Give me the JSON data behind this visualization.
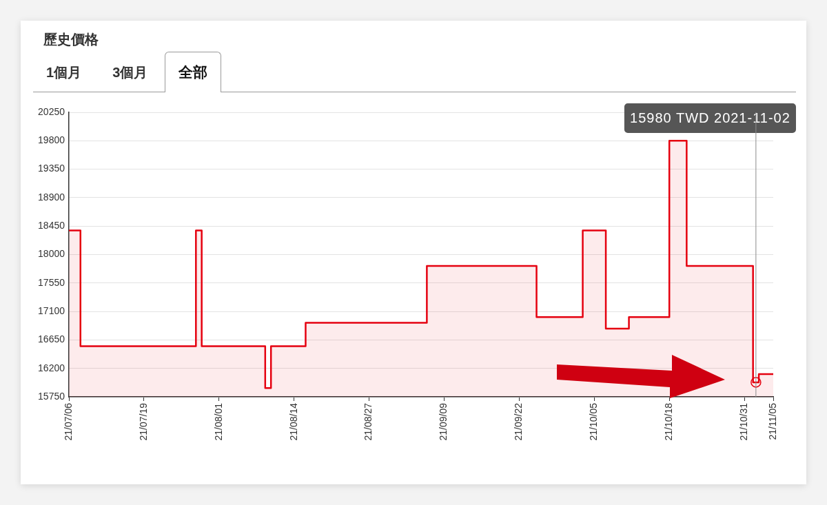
{
  "chart_data": {
    "type": "area",
    "title": "歷史價格",
    "annotations": [
      "1個月",
      "3個月",
      "全部",
      {
        "text": "15980 TWD 2021-11-02",
        "x": "2021-11-02"
      }
    ],
    "series": [
      {
        "color": "#e5000f",
        "x": [
          "2021-07-06",
          "2021-07-08",
          "2021-07-08",
          "2021-07-28",
          "2021-07-28",
          "2021-07-29",
          "2021-07-29",
          "2021-08-09",
          "2021-08-09",
          "2021-08-10",
          "2021-08-10",
          "2021-08-16",
          "2021-08-16",
          "2021-09-06",
          "2021-09-06",
          "2021-09-25",
          "2021-09-25",
          "2021-10-03",
          "2021-10-03",
          "2021-10-07",
          "2021-10-07",
          "2021-10-11",
          "2021-10-11",
          "2021-10-18",
          "2021-10-18",
          "2021-10-21",
          "2021-10-21",
          "2021-11-01T12:00",
          "2021-11-01T12:00",
          "2021-11-02T12:00",
          "2021-11-02T12:00",
          "2021-11-05"
        ],
        "values": [
          18380,
          18380,
          16550,
          16550,
          18380,
          18380,
          16550,
          16550,
          15890,
          15890,
          16550,
          16550,
          16920,
          16920,
          17820,
          17820,
          17010,
          17010,
          18380,
          18380,
          16830,
          16830,
          17010,
          17010,
          19800,
          19800,
          17820,
          17820,
          15980,
          15980,
          16110,
          16110
        ]
      },
      {
        "type": "scatter",
        "color": "#e5000f",
        "marker": "circle",
        "x": [
          "2021-11-02"
        ],
        "values": [
          15980
        ]
      }
    ],
    "ref_lines": [
      {
        "axis": "x",
        "value": "2021-11-02",
        "color": "#8c8c8c"
      }
    ],
    "xlim": [
      "2021-07-06",
      "2021-11-05"
    ],
    "xticks": [
      {
        "value": "2021-07-06",
        "label": "21/07/06"
      },
      {
        "value": "2021-07-19",
        "label": "21/07/19"
      },
      {
        "value": "2021-08-01",
        "label": "21/08/01"
      },
      {
        "value": "2021-08-14",
        "label": "21/08/14"
      },
      {
        "value": "2021-08-27",
        "label": "21/08/27"
      },
      {
        "value": "2021-09-09",
        "label": "21/09/09"
      },
      {
        "value": "2021-09-22",
        "label": "21/09/22"
      },
      {
        "value": "2021-10-05",
        "label": "21/10/05"
      },
      {
        "value": "2021-10-18",
        "label": "21/10/18"
      },
      {
        "value": "2021-10-31",
        "label": "21/10/31"
      },
      {
        "value": "2021-11-05",
        "label": "21/11/05"
      }
    ],
    "ylim": [
      15750,
      20250
    ],
    "yticks": [
      15750,
      16200,
      16650,
      17100,
      17550,
      18000,
      18450,
      18900,
      19350,
      19800,
      20250
    ],
    "grid": "y"
  }
}
